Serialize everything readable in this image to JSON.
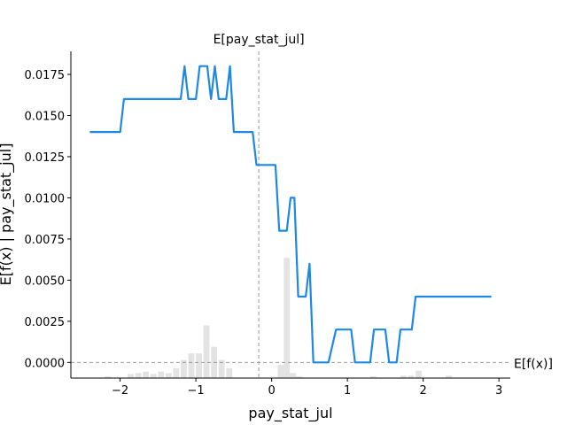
{
  "chart_data": {
    "type": "line",
    "title": "",
    "xlabel": "pay_stat_jul",
    "ylabel": "E[f(x) | pay_stat_jul]",
    "xlim": [
      -2.65,
      3.15
    ],
    "ylim": [
      -0.00095,
      0.0189
    ],
    "x_ticks": [
      -2,
      -1,
      0,
      1,
      2,
      3
    ],
    "x_tick_labels": [
      "−2",
      "−1",
      "0",
      "1",
      "2",
      "3"
    ],
    "y_ticks": [
      0,
      0.0025,
      0.005,
      0.0075,
      0.01,
      0.0125,
      0.015,
      0.0175
    ],
    "y_tick_labels": [
      "0.0000",
      "0.0025",
      "0.0050",
      "0.0075",
      "0.0100",
      "0.0125",
      "0.0150",
      "0.0175"
    ],
    "expected_x": {
      "label": "E[pay_stat_jul]",
      "value": -0.17
    },
    "expected_fx": {
      "label": "E[f(x)]",
      "value": 0
    },
    "series": [
      {
        "color": "#1E88E5",
        "x": [
          -2.4,
          -2.0,
          -1.95,
          -1.2,
          -1.15,
          -1.1,
          -1.0,
          -0.95,
          -0.85,
          -0.8,
          -0.75,
          -0.7,
          -0.6,
          -0.55,
          -0.5,
          -0.25,
          -0.2,
          0.05,
          0.1,
          0.2,
          0.25,
          0.3,
          0.35,
          0.45,
          0.5,
          0.55,
          0.75,
          0.8,
          0.85,
          1.05,
          1.1,
          1.3,
          1.35,
          1.5,
          1.55,
          1.65,
          1.7,
          1.85,
          1.9,
          2.9
        ],
        "y": [
          0.014,
          0.014,
          0.016,
          0.016,
          0.018,
          0.016,
          0.016,
          0.018,
          0.018,
          0.016,
          0.018,
          0.016,
          0.016,
          0.018,
          0.014,
          0.014,
          0.012,
          0.012,
          0.008,
          0.008,
          0.01,
          0.01,
          0.004,
          0.004,
          0.006,
          0.0,
          0.0,
          0.001,
          0.002,
          0.002,
          0.0,
          0.0,
          0.002,
          0.002,
          0.0,
          0.0,
          0.002,
          0.002,
          0.004,
          0.004
        ]
      }
    ],
    "histogram": {
      "color": "#cccccc",
      "bin_width": 0.08,
      "x": [
        -2.2,
        -1.9,
        -1.8,
        -1.7,
        -1.6,
        -1.5,
        -1.4,
        -1.3,
        -1.2,
        -1.1,
        -1.0,
        -0.9,
        -0.8,
        -0.7,
        -0.6,
        0.0,
        0.08,
        0.16,
        0.24,
        0.32,
        1.3,
        1.7,
        1.8,
        1.9,
        2.3
      ],
      "y": [
        0.0001,
        0.00025,
        0.0003,
        0.0004,
        0.00025,
        0.0004,
        0.0003,
        0.0006,
        0.0011,
        0.0015,
        0.0015,
        0.0032,
        0.0019,
        0.0011,
        0.0006,
        0.0,
        0.0008,
        0.0073,
        0.0003,
        0.0001,
        0.0001,
        0.00015,
        0.00015,
        0.00045,
        0.00015
      ]
    }
  }
}
